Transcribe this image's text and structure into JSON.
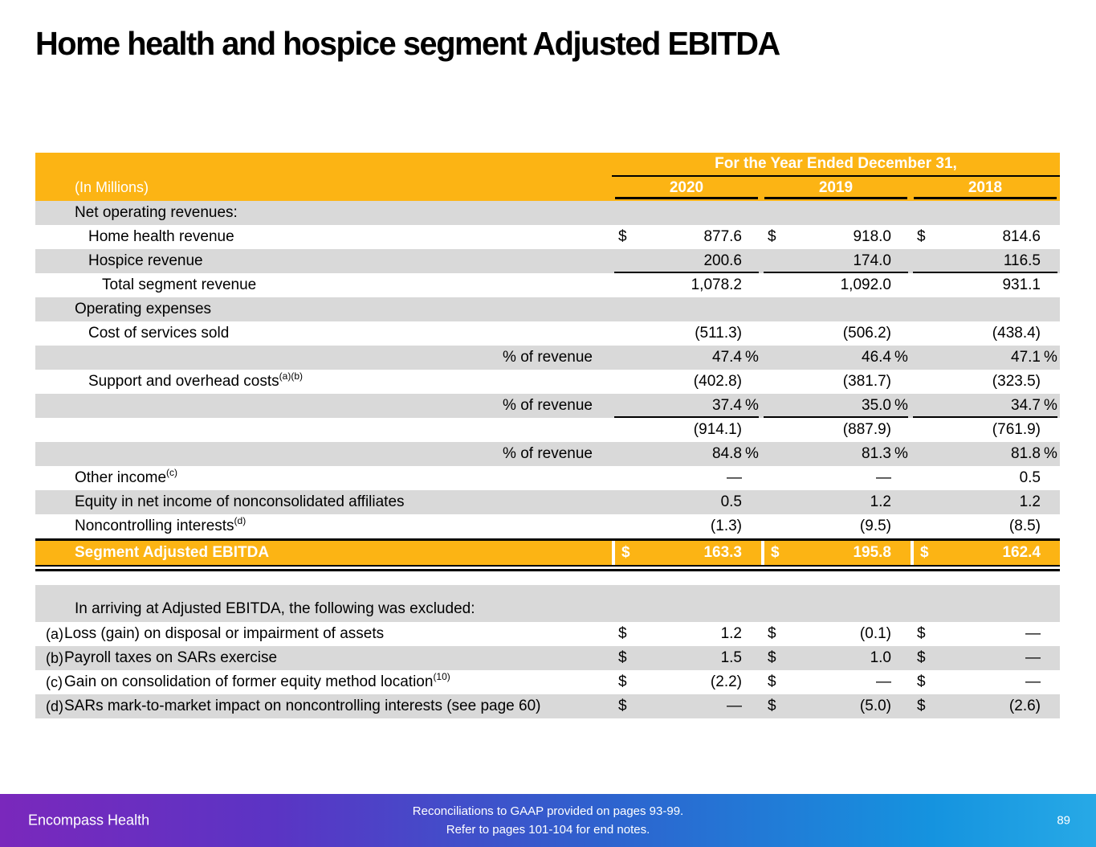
{
  "title": "Home health and hospice segment Adjusted EBITDA",
  "colors": {
    "accent_orange": "#FCB414",
    "row_stripe_gray": "#D9D9D9",
    "footer_gradient_left_purple": "#7A28BC",
    "footer_gradient_right_blue": "#27A9E6",
    "header_text": "#FFFFFF"
  },
  "table": {
    "header": {
      "unit_label": "(In Millions)",
      "span_label": "For the Year Ended December 31,",
      "years": [
        "2020",
        "2019",
        "2018"
      ]
    },
    "rows": [
      {
        "label": "Net operating revenues:",
        "indent": 1,
        "shade": true,
        "cells": [
          {},
          {},
          {}
        ]
      },
      {
        "label": "Home health revenue",
        "indent": 2,
        "cells": [
          {
            "d": "$",
            "v": "877.6"
          },
          {
            "d": "$",
            "v": "918.0"
          },
          {
            "d": "$",
            "v": "814.6"
          }
        ]
      },
      {
        "label": "Hospice revenue",
        "indent": 2,
        "shade": true,
        "underline": true,
        "cells": [
          {
            "v": "200.6"
          },
          {
            "v": "174.0"
          },
          {
            "v": "116.5"
          }
        ]
      },
      {
        "label": "Total segment revenue",
        "indent": 3,
        "cells": [
          {
            "v": "1,078.2"
          },
          {
            "v": "1,092.0"
          },
          {
            "v": "931.1"
          }
        ]
      },
      {
        "label": "Operating expenses",
        "indent": 1,
        "shade": true,
        "cells": [
          {},
          {},
          {}
        ]
      },
      {
        "label": "Cost of services sold",
        "indent": 2,
        "cells": [
          {
            "v": "(511.3)"
          },
          {
            "v": "(506.2)"
          },
          {
            "v": "(438.4)"
          }
        ]
      },
      {
        "label": "% of revenue",
        "align": "right",
        "shade": true,
        "cells": [
          {
            "v": "47.4",
            "s": "%"
          },
          {
            "v": "46.4",
            "s": "%"
          },
          {
            "v": "47.1",
            "s": "%"
          }
        ]
      },
      {
        "label": "Support and overhead costs",
        "sup": "(a)(b)",
        "indent": 2,
        "cells": [
          {
            "v": "(402.8)"
          },
          {
            "v": "(381.7)"
          },
          {
            "v": "(323.5)"
          }
        ]
      },
      {
        "label": "% of revenue",
        "align": "right",
        "shade": true,
        "underline": true,
        "cells": [
          {
            "v": "37.4",
            "s": "%"
          },
          {
            "v": "35.0",
            "s": "%"
          },
          {
            "v": "34.7",
            "s": "%"
          }
        ]
      },
      {
        "label": "",
        "cells": [
          {
            "v": "(914.1)"
          },
          {
            "v": "(887.9)"
          },
          {
            "v": "(761.9)"
          }
        ]
      },
      {
        "label": "% of revenue",
        "align": "right",
        "shade": true,
        "cells": [
          {
            "v": "84.8",
            "s": "%"
          },
          {
            "v": "81.3",
            "s": "%"
          },
          {
            "v": "81.8",
            "s": "%"
          }
        ]
      },
      {
        "label": "Other income",
        "sup": "(c)",
        "indent": 1,
        "cells": [
          {
            "v": "—"
          },
          {
            "v": "—"
          },
          {
            "v": "0.5"
          }
        ]
      },
      {
        "label": "Equity in net income of nonconsolidated affiliates",
        "indent": 1,
        "shade": true,
        "cells": [
          {
            "v": "0.5"
          },
          {
            "v": "1.2"
          },
          {
            "v": "1.2"
          }
        ]
      },
      {
        "label": "Noncontrolling interests",
        "sup": "(d)",
        "indent": 1,
        "cells": [
          {
            "v": "(1.3)"
          },
          {
            "v": "(9.5)"
          },
          {
            "v": "(8.5)"
          }
        ]
      },
      {
        "label": "Segment Adjusted EBITDA",
        "indent": 1,
        "total": true,
        "cells": [
          {
            "d": "$",
            "v": "163.3"
          },
          {
            "d": "$",
            "v": "195.8"
          },
          {
            "d": "$",
            "v": "162.4"
          }
        ]
      }
    ],
    "excluded": {
      "heading": "In arriving at Adjusted EBITDA, the following was excluded:",
      "rows": [
        {
          "marker": "(a)",
          "label": "Loss (gain) on disposal or impairment of assets",
          "cells": [
            {
              "d": "$",
              "v": "1.2"
            },
            {
              "d": "$",
              "v": "(0.1)"
            },
            {
              "d": "$",
              "v": "—"
            }
          ]
        },
        {
          "marker": "(b)",
          "label": "Payroll taxes on SARs exercise",
          "shade": true,
          "cells": [
            {
              "d": "$",
              "v": "1.5"
            },
            {
              "d": "$",
              "v": "1.0"
            },
            {
              "d": "$",
              "v": "—"
            }
          ]
        },
        {
          "marker": "(c)",
          "label": "Gain on consolidation of former equity method location",
          "sup": "(10)",
          "cells": [
            {
              "d": "$",
              "v": "(2.2)"
            },
            {
              "d": "$",
              "v": "—"
            },
            {
              "d": "$",
              "v": "—"
            }
          ]
        },
        {
          "marker": "(d)",
          "label": "SARs mark-to-market impact on noncontrolling interests (see page 60)",
          "shade": true,
          "cells": [
            {
              "d": "$",
              "v": "—"
            },
            {
              "d": "$",
              "v": "(5.0)"
            },
            {
              "d": "$",
              "v": "(2.6)"
            }
          ]
        }
      ]
    }
  },
  "footer": {
    "brand": "Encompass Health",
    "note_line1": "Reconciliations to GAAP provided on pages 93-99.",
    "note_line2": "Refer to pages 101-104 for end notes.",
    "page_number": "89"
  }
}
